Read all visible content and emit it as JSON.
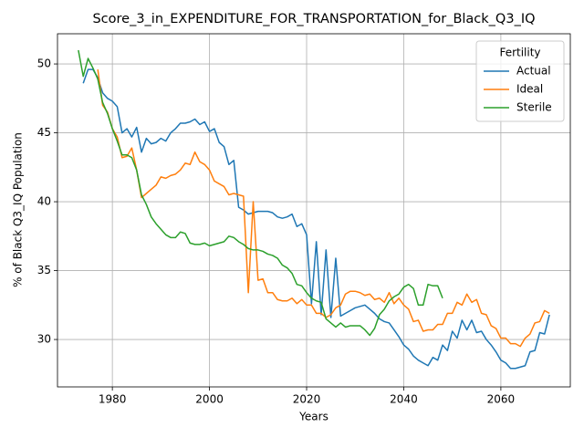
{
  "chart_data": {
    "type": "line",
    "title": "Score_3_in_EXPENDITURE_FOR_TRANSPORTATION_for_Black_Q3_IQ",
    "x_label": "Years",
    "y_label": "% of Black Q3_IQ Population",
    "legend_title": "Fertility",
    "legend_position": "upper right",
    "grid": true,
    "xlim": [
      1968.7,
      2074.3
    ],
    "ylim": [
      26.56,
      52.19
    ],
    "xticks": [
      1980,
      2000,
      2020,
      2040,
      2060
    ],
    "yticks": [
      30,
      35,
      40,
      45,
      50
    ],
    "x": [
      1973,
      1974,
      1975,
      1976,
      1977,
      1978,
      1979,
      1980,
      1981,
      1982,
      1983,
      1984,
      1985,
      1986,
      1987,
      1988,
      1989,
      1990,
      1991,
      1992,
      1993,
      1994,
      1995,
      1996,
      1997,
      1998,
      1999,
      2000,
      2001,
      2002,
      2003,
      2004,
      2005,
      2006,
      2007,
      2008,
      2009,
      2010,
      2011,
      2012,
      2013,
      2014,
      2015,
      2016,
      2017,
      2018,
      2019,
      2020,
      2021,
      2022,
      2023,
      2024,
      2025,
      2026,
      2027,
      2028,
      2029,
      2030,
      2031,
      2032,
      2033,
      2034,
      2035,
      2036,
      2037,
      2038,
      2039,
      2040,
      2041,
      2042,
      2043,
      2044,
      2045,
      2046,
      2047,
      2048,
      2049,
      2050,
      2051,
      2052,
      2053,
      2054,
      2055,
      2056,
      2057,
      2058,
      2059,
      2060,
      2061,
      2062,
      2063,
      2064,
      2065,
      2066,
      2067,
      2068,
      2069,
      2070
    ],
    "series": [
      {
        "name": "Actual",
        "color": "#1f77b4",
        "values": [
          null,
          48.6,
          49.6,
          49.6,
          49.0,
          47.9,
          47.5,
          47.3,
          46.9,
          45.0,
          45.3,
          44.7,
          45.4,
          43.6,
          44.6,
          44.2,
          44.3,
          44.6,
          44.4,
          45.0,
          45.3,
          45.7,
          45.7,
          45.8,
          46.0,
          45.6,
          45.8,
          45.1,
          45.3,
          44.3,
          44.0,
          42.7,
          43.0,
          39.6,
          39.4,
          39.1,
          39.2,
          39.3,
          39.3,
          39.3,
          39.2,
          38.9,
          38.8,
          38.9,
          39.1,
          38.2,
          38.4,
          37.6,
          32.6,
          37.1,
          31.8,
          36.5,
          31.6,
          35.9,
          31.7,
          31.9,
          32.1,
          32.3,
          32.4,
          32.5,
          32.2,
          31.9,
          31.5,
          31.3,
          31.2,
          30.7,
          30.2,
          29.6,
          29.3,
          28.8,
          28.5,
          28.3,
          28.1,
          28.7,
          28.5,
          29.6,
          29.2,
          30.6,
          30.1,
          31.4,
          30.7,
          31.4,
          30.5,
          30.6,
          30.0,
          29.6,
          29.1,
          28.5,
          28.3,
          27.9,
          27.9,
          28.0,
          28.1,
          29.1,
          29.2,
          30.5,
          30.4,
          31.8
        ]
      },
      {
        "name": "Ideal",
        "color": "#ff7f0e",
        "values": [
          null,
          null,
          null,
          null,
          49.6,
          47.0,
          46.5,
          45.3,
          44.7,
          43.2,
          43.3,
          43.9,
          42.3,
          40.3,
          40.6,
          40.9,
          41.2,
          41.8,
          41.7,
          41.9,
          42.0,
          42.3,
          42.8,
          42.7,
          43.6,
          42.9,
          42.7,
          42.3,
          41.5,
          41.3,
          41.1,
          40.5,
          40.6,
          40.5,
          40.4,
          33.4,
          40.0,
          34.3,
          34.4,
          33.4,
          33.4,
          32.9,
          32.8,
          32.8,
          33.0,
          32.6,
          32.9,
          32.5,
          32.5,
          31.9,
          31.9,
          31.6,
          31.8,
          32.3,
          32.5,
          33.3,
          33.5,
          33.5,
          33.4,
          33.2,
          33.3,
          32.9,
          33.0,
          32.7,
          33.4,
          32.6,
          33.0,
          32.5,
          32.2,
          31.3,
          31.4,
          30.6,
          30.7,
          30.7,
          31.1,
          31.1,
          31.9,
          31.9,
          32.7,
          32.5,
          33.3,
          32.7,
          32.9,
          31.9,
          31.8,
          31.0,
          30.8,
          30.1,
          30.1,
          29.7,
          29.7,
          29.5,
          30.1,
          30.4,
          31.2,
          31.3,
          32.1,
          31.9
        ]
      },
      {
        "name": "Sterile",
        "color": "#2ca02c",
        "values": [
          51.0,
          49.1,
          50.4,
          49.7,
          48.9,
          47.2,
          46.4,
          45.3,
          44.4,
          43.4,
          43.4,
          43.2,
          42.3,
          40.5,
          39.8,
          38.9,
          38.4,
          38.0,
          37.6,
          37.4,
          37.4,
          37.8,
          37.7,
          37.0,
          36.9,
          36.9,
          37.0,
          36.8,
          36.9,
          37.0,
          37.1,
          37.5,
          37.4,
          37.1,
          36.9,
          36.6,
          36.5,
          36.5,
          36.4,
          36.2,
          36.1,
          35.9,
          35.4,
          35.2,
          34.8,
          34.0,
          33.9,
          33.4,
          33.0,
          32.8,
          32.7,
          31.5,
          31.2,
          30.9,
          31.2,
          30.9,
          31.0,
          31.0,
          31.0,
          30.7,
          30.3,
          30.8,
          31.8,
          32.2,
          32.8,
          33.1,
          33.3,
          33.8,
          34.0,
          33.7,
          32.5,
          32.5,
          34.0,
          33.9,
          33.9,
          33.0,
          null,
          null,
          null,
          null,
          null,
          null,
          null,
          null,
          null,
          null,
          null,
          null,
          null,
          null,
          null,
          null,
          null,
          null,
          null,
          null,
          null,
          null
        ]
      }
    ]
  }
}
